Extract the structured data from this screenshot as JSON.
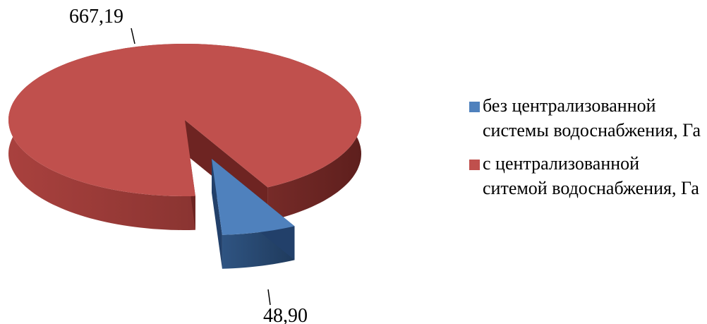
{
  "chart_data": {
    "type": "pie",
    "categories": [
      "без централизованной системы водоснабжения, Га",
      "с централизованной ситемой водоснабжения, Га"
    ],
    "values": [
      48.9,
      667.19
    ],
    "value_labels": [
      "48,90",
      "667,19"
    ],
    "colors": [
      "#4f81bd",
      "#c0504d"
    ],
    "legend": "right"
  }
}
